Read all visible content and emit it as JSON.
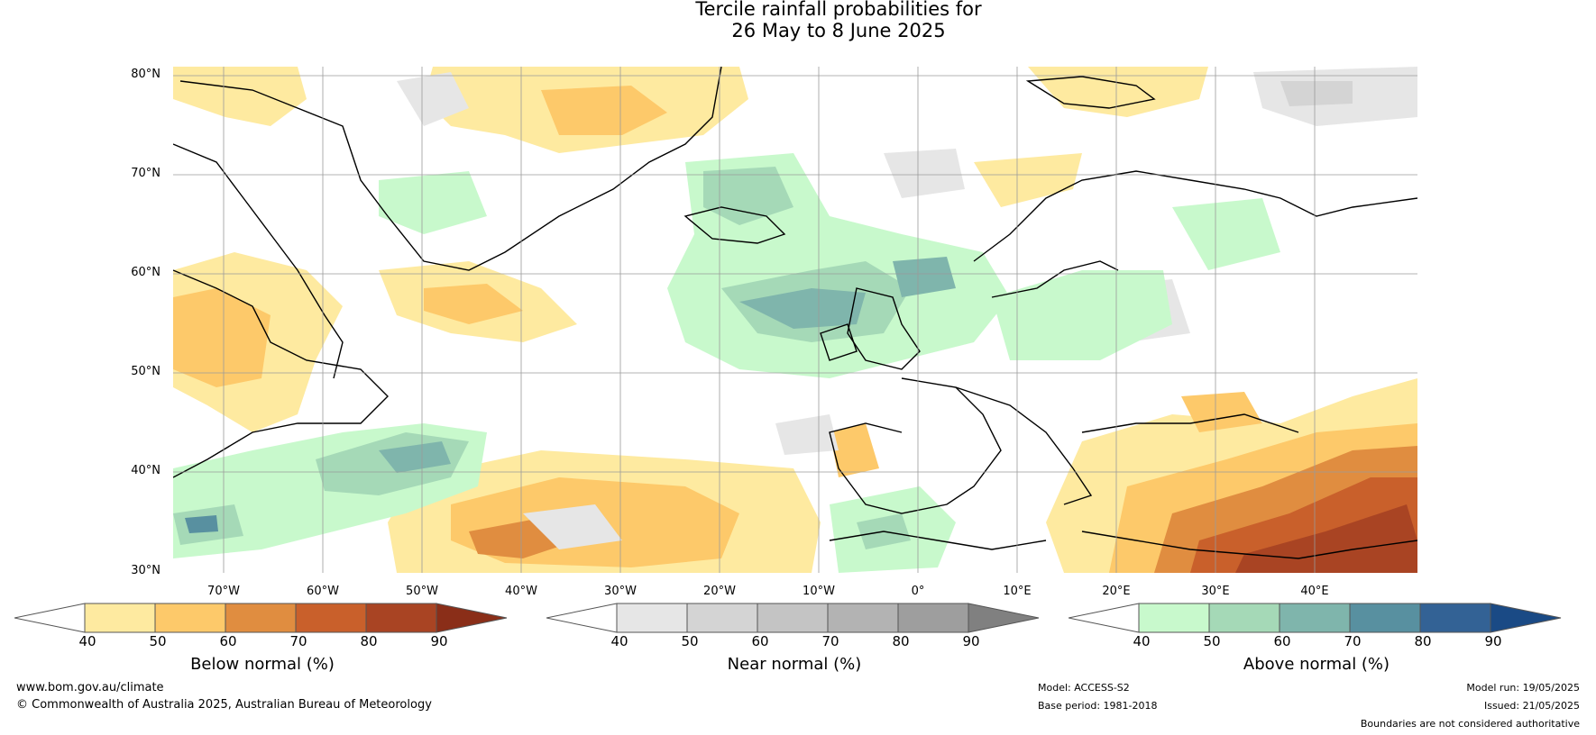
{
  "title": {
    "line1": "Tercile rainfall probabilities for",
    "line2": "26 May to 8 June 2025"
  },
  "map": {
    "region": "North Atlantic and Europe",
    "lat_labels": [
      "80°N",
      "70°N",
      "60°N",
      "50°N",
      "40°N",
      "30°N"
    ],
    "lon_labels": [
      "70°W",
      "60°W",
      "50°W",
      "40°W",
      "30°W",
      "20°W",
      "10°W",
      "0°",
      "10°E",
      "20°E",
      "30°E",
      "40°E"
    ],
    "grid": true
  },
  "legend": {
    "below": {
      "label": "Below normal (%)",
      "ticks": [
        "40",
        "50",
        "60",
        "70",
        "80",
        "90"
      ],
      "colors": [
        "#ffffff",
        "#feeaa0",
        "#fdc96a",
        "#e08d40",
        "#c9602b",
        "#a94423",
        "#8a2e18"
      ]
    },
    "near": {
      "label": "Near normal (%)",
      "ticks": [
        "40",
        "50",
        "60",
        "70",
        "80",
        "90"
      ],
      "colors": [
        "#ffffff",
        "#e6e6e6",
        "#d4d4d4",
        "#c4c4c4",
        "#b3b3b3",
        "#9e9e9e",
        "#808080"
      ]
    },
    "above": {
      "label": "Above normal (%)",
      "ticks": [
        "40",
        "50",
        "60",
        "70",
        "80",
        "90"
      ],
      "colors": [
        "#ffffff",
        "#c8f9cc",
        "#a5d9b7",
        "#7fb5ac",
        "#5890a0",
        "#336295",
        "#1a4a85"
      ]
    }
  },
  "footer": {
    "url": "www.bom.gov.au/climate",
    "copyright": "© Commonwealth of Australia 2025, Australian Bureau of Meteorology",
    "model": "Model: ACCESS-S2",
    "base_period": "Base period: 1981-2018",
    "model_run": "Model run: 19/05/2025",
    "issued": "Issued: 21/05/2025",
    "disclaimer": "Boundaries are not considered authoritative"
  }
}
